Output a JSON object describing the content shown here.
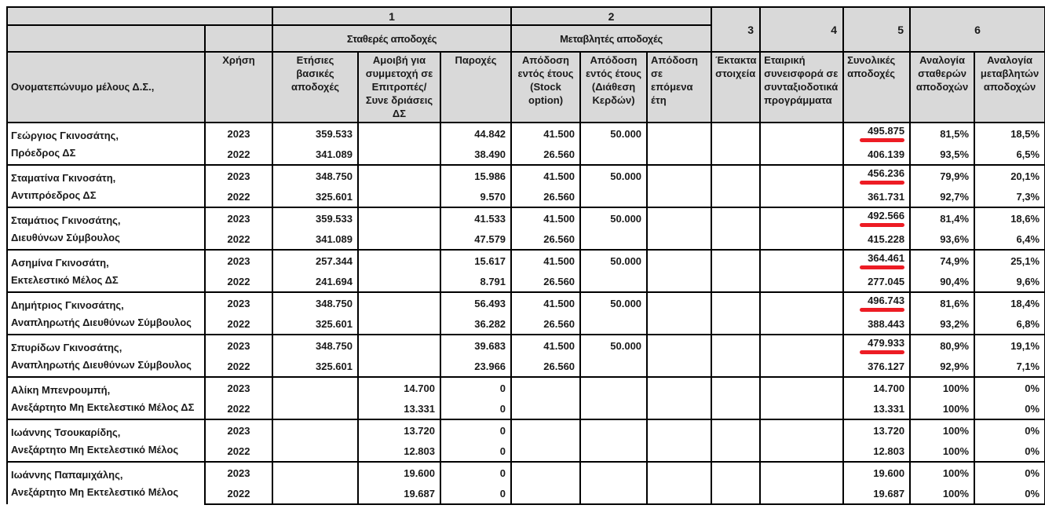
{
  "document": {
    "kind": "board-remuneration-table",
    "styles": {
      "header_bg": "#d9d9d9",
      "border_color": "#000000",
      "underline_color": "#ed1c24",
      "text_color": "#1a1a1a"
    },
    "header": {
      "corner_label": "",
      "groups": [
        {
          "number": "1",
          "label": "Σταθερές αποδοχές"
        },
        {
          "number": "2",
          "label": "Μεταβλητές αποδοχές"
        },
        {
          "number": "3",
          "label": ""
        },
        {
          "number": "4",
          "label": ""
        },
        {
          "number": "5",
          "label": ""
        },
        {
          "number": "6",
          "label": ""
        }
      ],
      "columns": [
        {
          "key": "name",
          "label": "Ονοματεπώνυμο μέλους Δ.Σ.,"
        },
        {
          "key": "year",
          "label": "Χρήση"
        },
        {
          "key": "base",
          "label": "Ετήσιες βασικές αποδοχές"
        },
        {
          "key": "committee",
          "label": "Αμοιβή για συμμετοχή σε Επιτροπές/Συνε δριάσεις ΔΣ"
        },
        {
          "key": "benefits",
          "label": "Παροχές"
        },
        {
          "key": "stock",
          "label": "Απόδοση εντός έτους (Stock option)"
        },
        {
          "key": "profit",
          "label": "Απόδοση εντός έτους (Διάθεση Κερδών)"
        },
        {
          "key": "future",
          "label": "Απόδοση σε επόμενα έτη"
        },
        {
          "key": "extra",
          "label": "Έκτακτα στοιχεία"
        },
        {
          "key": "pension",
          "label": "Εταιρική συνεισφορά σε συνταξιοδοτικά προγράμματα"
        },
        {
          "key": "total",
          "label": "Συνολικές αποδοχές"
        },
        {
          "key": "fixed",
          "label": "Αναλογία σταθερών αποδοχών"
        },
        {
          "key": "variable",
          "label": "Αναλογία μεταβλητών αποδοχών"
        }
      ]
    },
    "members": [
      {
        "name": "Γεώργιος Γκινοσάτης,",
        "role": "Πρόεδρος ΔΣ",
        "years": [
          {
            "year": "2023",
            "base": "359.533",
            "committee": "",
            "benefits": "44.842",
            "stock": "41.500",
            "profit": "50.000",
            "future": "",
            "extra": "",
            "pension": "",
            "total": "495.875",
            "total_underlined": true,
            "fixed": "81,5%",
            "variable": "18,5%"
          },
          {
            "year": "2022",
            "base": "341.089",
            "committee": "",
            "benefits": "38.490",
            "stock": "26.560",
            "profit": "",
            "future": "",
            "extra": "",
            "pension": "",
            "total": "406.139",
            "total_underlined": false,
            "fixed": "93,5%",
            "variable": "6,5%"
          }
        ]
      },
      {
        "name": "Σταματίνα Γκινοσάτη,",
        "role": "Αντιπρόεδρος ΔΣ",
        "years": [
          {
            "year": "2023",
            "base": "348.750",
            "committee": "",
            "benefits": "15.986",
            "stock": "41.500",
            "profit": "50.000",
            "future": "",
            "extra": "",
            "pension": "",
            "total": "456.236",
            "total_underlined": true,
            "fixed": "79,9%",
            "variable": "20,1%"
          },
          {
            "year": "2022",
            "base": "325.601",
            "committee": "",
            "benefits": "9.570",
            "stock": "26.560",
            "profit": "",
            "future": "",
            "extra": "",
            "pension": "",
            "total": "361.731",
            "total_underlined": false,
            "fixed": "92,7%",
            "variable": "7,3%"
          }
        ]
      },
      {
        "name": "Σταμάτιος Γκινοσάτης,",
        "role": "Διευθύνων Σύμβουλος",
        "years": [
          {
            "year": "2023",
            "base": "359.533",
            "committee": "",
            "benefits": "41.533",
            "stock": "41.500",
            "profit": "50.000",
            "future": "",
            "extra": "",
            "pension": "",
            "total": "492.566",
            "total_underlined": true,
            "fixed": "81,4%",
            "variable": "18,6%"
          },
          {
            "year": "2022",
            "base": "341.089",
            "committee": "",
            "benefits": "47.579",
            "stock": "26.560",
            "profit": "",
            "future": "",
            "extra": "",
            "pension": "",
            "total": "415.228",
            "total_underlined": false,
            "fixed": "93,6%",
            "variable": "6,4%"
          }
        ]
      },
      {
        "name": "Ασημίνα Γκινοσάτη,",
        "role": "Εκτελεστικό Μέλος ΔΣ",
        "years": [
          {
            "year": "2023",
            "base": "257.344",
            "committee": "",
            "benefits": "15.617",
            "stock": "41.500",
            "profit": "50.000",
            "future": "",
            "extra": "",
            "pension": "",
            "total": "364.461",
            "total_underlined": true,
            "fixed": "74,9%",
            "variable": "25,1%"
          },
          {
            "year": "2022",
            "base": "241.694",
            "committee": "",
            "benefits": "8.791",
            "stock": "26.560",
            "profit": "",
            "future": "",
            "extra": "",
            "pension": "",
            "total": "277.045",
            "total_underlined": false,
            "fixed": "90,4%",
            "variable": "9,6%"
          }
        ]
      },
      {
        "name": "Δημήτριος Γκινοσάτης,",
        "role": "Αναπληρωτής Διευθύνων Σύμβουλος",
        "years": [
          {
            "year": "2023",
            "base": "348.750",
            "committee": "",
            "benefits": "56.493",
            "stock": "41.500",
            "profit": "50.000",
            "future": "",
            "extra": "",
            "pension": "",
            "total": "496.743",
            "total_underlined": true,
            "fixed": "81,6%",
            "variable": "18,4%"
          },
          {
            "year": "2022",
            "base": "325.601",
            "committee": "",
            "benefits": "36.282",
            "stock": "26.560",
            "profit": "",
            "future": "",
            "extra": "",
            "pension": "",
            "total": "388.443",
            "total_underlined": false,
            "fixed": "93,2%",
            "variable": "6,8%"
          }
        ]
      },
      {
        "name": "Σπυρίδων Γκινοσάτης,",
        "role": "Αναπληρωτής Διευθύνων Σύμβουλος",
        "years": [
          {
            "year": "2023",
            "base": "348.750",
            "committee": "",
            "benefits": "39.683",
            "stock": "41.500",
            "profit": "50.000",
            "future": "",
            "extra": "",
            "pension": "",
            "total": "479.933",
            "total_underlined": true,
            "fixed": "80,9%",
            "variable": "19,1%"
          },
          {
            "year": "2022",
            "base": "325.601",
            "committee": "",
            "benefits": "23.966",
            "stock": "26.560",
            "profit": "",
            "future": "",
            "extra": "",
            "pension": "",
            "total": "376.127",
            "total_underlined": false,
            "fixed": "92,9%",
            "variable": "7,1%"
          }
        ]
      },
      {
        "name": "Αλίκη Μπενρουμπή,",
        "role": "Ανεξάρτητο Μη Εκτελεστικό Μέλος ΔΣ",
        "years": [
          {
            "year": "2023",
            "base": "",
            "committee": "14.700",
            "benefits": "0",
            "stock": "",
            "profit": "",
            "future": "",
            "extra": "",
            "pension": "",
            "total": "14.700",
            "total_underlined": false,
            "fixed": "100%",
            "variable": "0%"
          },
          {
            "year": "2022",
            "base": "",
            "committee": "13.331",
            "benefits": "0",
            "stock": "",
            "profit": "",
            "future": "",
            "extra": "",
            "pension": "",
            "total": "13.331",
            "total_underlined": false,
            "fixed": "100%",
            "variable": "0%"
          }
        ]
      },
      {
        "name": "Ιωάννης Τσουκαρίδης,",
        "role": "Ανεξάρτητο Μη Εκτελεστικό Μέλος",
        "years": [
          {
            "year": "2023",
            "base": "",
            "committee": "13.720",
            "benefits": "0",
            "stock": "",
            "profit": "",
            "future": "",
            "extra": "",
            "pension": "",
            "total": "13.720",
            "total_underlined": false,
            "fixed": "100%",
            "variable": "0%"
          },
          {
            "year": "2022",
            "base": "",
            "committee": "12.803",
            "benefits": "0",
            "stock": "",
            "profit": "",
            "future": "",
            "extra": "",
            "pension": "",
            "total": "12.803",
            "total_underlined": false,
            "fixed": "100%",
            "variable": "0%"
          }
        ]
      },
      {
        "name": "Ιωάννης Παπαμιχάλης,",
        "role": "Ανεξάρτητο Μη Εκτελεστικό Μέλος",
        "years": [
          {
            "year": "2023",
            "base": "",
            "committee": "19.600",
            "benefits": "0",
            "stock": "",
            "profit": "",
            "future": "",
            "extra": "",
            "pension": "",
            "total": "19.600",
            "total_underlined": false,
            "fixed": "100%",
            "variable": "0%"
          },
          {
            "year": "2022",
            "base": "",
            "committee": "19.687",
            "benefits": "0",
            "stock": "",
            "profit": "",
            "future": "",
            "extra": "",
            "pension": "",
            "total": "19.687",
            "total_underlined": false,
            "fixed": "100%",
            "variable": "0%"
          }
        ]
      }
    ]
  }
}
